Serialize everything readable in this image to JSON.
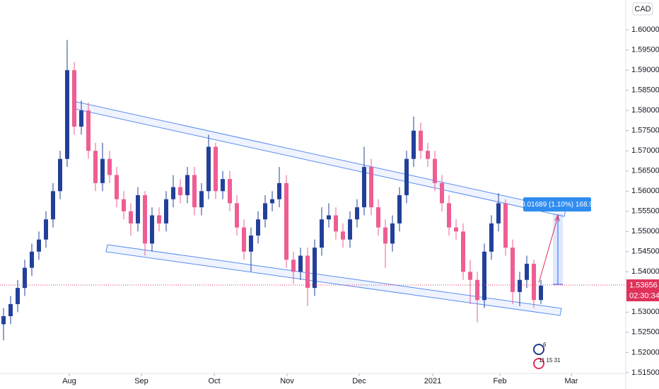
{
  "chart_data": {
    "type": "candlestick",
    "currency": "CAD",
    "open": [
      1.527,
      1.529,
      1.532,
      1.536,
      1.541,
      1.545,
      1.548,
      1.553,
      1.56,
      1.568,
      1.59,
      1.576,
      1.58,
      1.57,
      1.562,
      1.568,
      1.564,
      1.558,
      1.555,
      1.552,
      1.559,
      1.547,
      1.554,
      1.552,
      1.558,
      1.561,
      1.559,
      1.564,
      1.556,
      1.56,
      1.571,
      1.56,
      1.563,
      1.557,
      1.551,
      1.545,
      1.549,
      1.553,
      1.557,
      1.558,
      1.562,
      1.543,
      1.54,
      1.544,
      1.536,
      1.546,
      1.553,
      1.554,
      1.55,
      1.548,
      1.553,
      1.556,
      1.566,
      1.556,
      1.551,
      1.547,
      1.552,
      1.559,
      1.568,
      1.575,
      1.57,
      1.568,
      1.562,
      1.557,
      1.551,
      1.55,
      1.54,
      1.538,
      1.533,
      1.545,
      1.552,
      1.557,
      1.546,
      1.535,
      1.538,
      1.542,
      1.533
    ],
    "high": [
      1.531,
      1.534,
      1.538,
      1.543,
      1.547,
      1.55,
      1.555,
      1.562,
      1.57,
      1.5975,
      1.592,
      1.5825,
      1.582,
      1.572,
      1.572,
      1.57,
      1.566,
      1.56,
      1.557,
      1.561,
      1.56,
      1.556,
      1.556,
      1.56,
      1.564,
      1.563,
      1.566,
      1.566,
      1.562,
      1.574,
      1.572,
      1.565,
      1.565,
      1.559,
      1.553,
      1.551,
      1.555,
      1.559,
      1.56,
      1.566,
      1.564,
      1.545,
      1.546,
      1.546,
      1.548,
      1.556,
      1.557,
      1.556,
      1.552,
      1.555,
      1.558,
      1.571,
      1.568,
      1.558,
      1.553,
      1.554,
      1.561,
      1.57,
      1.5785,
      1.577,
      1.572,
      1.57,
      1.564,
      1.559,
      1.553,
      1.552,
      1.543,
      1.54,
      1.547,
      1.554,
      1.5595,
      1.558,
      1.548,
      1.54,
      1.544,
      1.543,
      1.538
    ],
    "low": [
      1.523,
      1.527,
      1.53,
      1.534,
      1.539,
      1.543,
      1.546,
      1.551,
      1.558,
      1.566,
      1.574,
      1.574,
      1.568,
      1.56,
      1.56,
      1.562,
      1.556,
      1.553,
      1.549,
      1.55,
      1.544,
      1.545,
      1.55,
      1.55,
      1.556,
      1.557,
      1.557,
      1.554,
      1.554,
      1.558,
      1.558,
      1.558,
      1.555,
      1.549,
      1.543,
      1.54,
      1.547,
      1.551,
      1.555,
      1.556,
      1.541,
      1.537,
      1.538,
      1.5315,
      1.534,
      1.544,
      1.551,
      1.548,
      1.546,
      1.546,
      1.551,
      1.554,
      1.554,
      1.549,
      1.541,
      1.545,
      1.55,
      1.557,
      1.566,
      1.568,
      1.566,
      1.56,
      1.555,
      1.549,
      1.548,
      1.538,
      1.532,
      1.5275,
      1.531,
      1.543,
      1.55,
      1.544,
      1.532,
      1.5315,
      1.536,
      1.531,
      1.532
    ],
    "close": [
      1.529,
      1.532,
      1.536,
      1.541,
      1.545,
      1.548,
      1.553,
      1.56,
      1.568,
      1.59,
      1.576,
      1.58,
      1.57,
      1.562,
      1.568,
      1.564,
      1.558,
      1.555,
      1.552,
      1.559,
      1.547,
      1.554,
      1.552,
      1.558,
      1.561,
      1.559,
      1.564,
      1.556,
      1.56,
      1.571,
      1.56,
      1.563,
      1.557,
      1.551,
      1.545,
      1.549,
      1.553,
      1.557,
      1.558,
      1.562,
      1.543,
      1.54,
      1.544,
      1.536,
      1.546,
      1.553,
      1.554,
      1.55,
      1.548,
      1.553,
      1.556,
      1.566,
      1.556,
      1.551,
      1.547,
      1.552,
      1.559,
      1.568,
      1.575,
      1.57,
      1.568,
      1.562,
      1.557,
      1.551,
      1.55,
      1.54,
      1.538,
      1.533,
      1.545,
      1.552,
      1.557,
      1.546,
      1.535,
      1.538,
      1.542,
      1.533,
      1.53656
    ],
    "up_color": "#22409a",
    "down_color": "#ef5d93",
    "xlim": [
      -0.5,
      88
    ],
    "xticks": [
      {
        "value": 9.3,
        "label": "Aug"
      },
      {
        "value": 19.5,
        "label": "Sep"
      },
      {
        "value": 29.8,
        "label": "Oct"
      },
      {
        "value": 40.1,
        "label": "Nov"
      },
      {
        "value": 50.3,
        "label": "Dec"
      },
      {
        "value": 60.7,
        "label": "2021"
      },
      {
        "value": 70.2,
        "label": "Feb"
      },
      {
        "value": 80.3,
        "label": "Mar"
      }
    ],
    "ylim": [
      1.5148,
      1.6074
    ],
    "yticks": [
      {
        "value": 1.515,
        "label": "1.51500"
      },
      {
        "value": 1.52,
        "label": "1.52000"
      },
      {
        "value": 1.525,
        "label": "1.52500"
      },
      {
        "value": 1.53,
        "label": "1.53000"
      },
      {
        "value": 1.535,
        "label": "1.53500"
      },
      {
        "value": 1.54,
        "label": "1.54000"
      },
      {
        "value": 1.545,
        "label": "1.54500"
      },
      {
        "value": 1.55,
        "label": "1.55000"
      },
      {
        "value": 1.555,
        "label": "1.55500"
      },
      {
        "value": 1.56,
        "label": "1.56000"
      },
      {
        "value": 1.565,
        "label": "1.56500"
      },
      {
        "value": 1.57,
        "label": "1.57000"
      },
      {
        "value": 1.575,
        "label": "1.57500"
      },
      {
        "value": 1.58,
        "label": "1.58000"
      },
      {
        "value": 1.585,
        "label": "1.58500"
      },
      {
        "value": 1.59,
        "label": "1.59000"
      },
      {
        "value": 1.595,
        "label": "1.59500"
      },
      {
        "value": 1.6,
        "label": "1.60000"
      }
    ],
    "grid": false,
    "countdown": "02:30:34",
    "measure_label": "0.01689 (1.10%) 168.9",
    "events": [
      "6",
      "11 15 31"
    ]
  }
}
